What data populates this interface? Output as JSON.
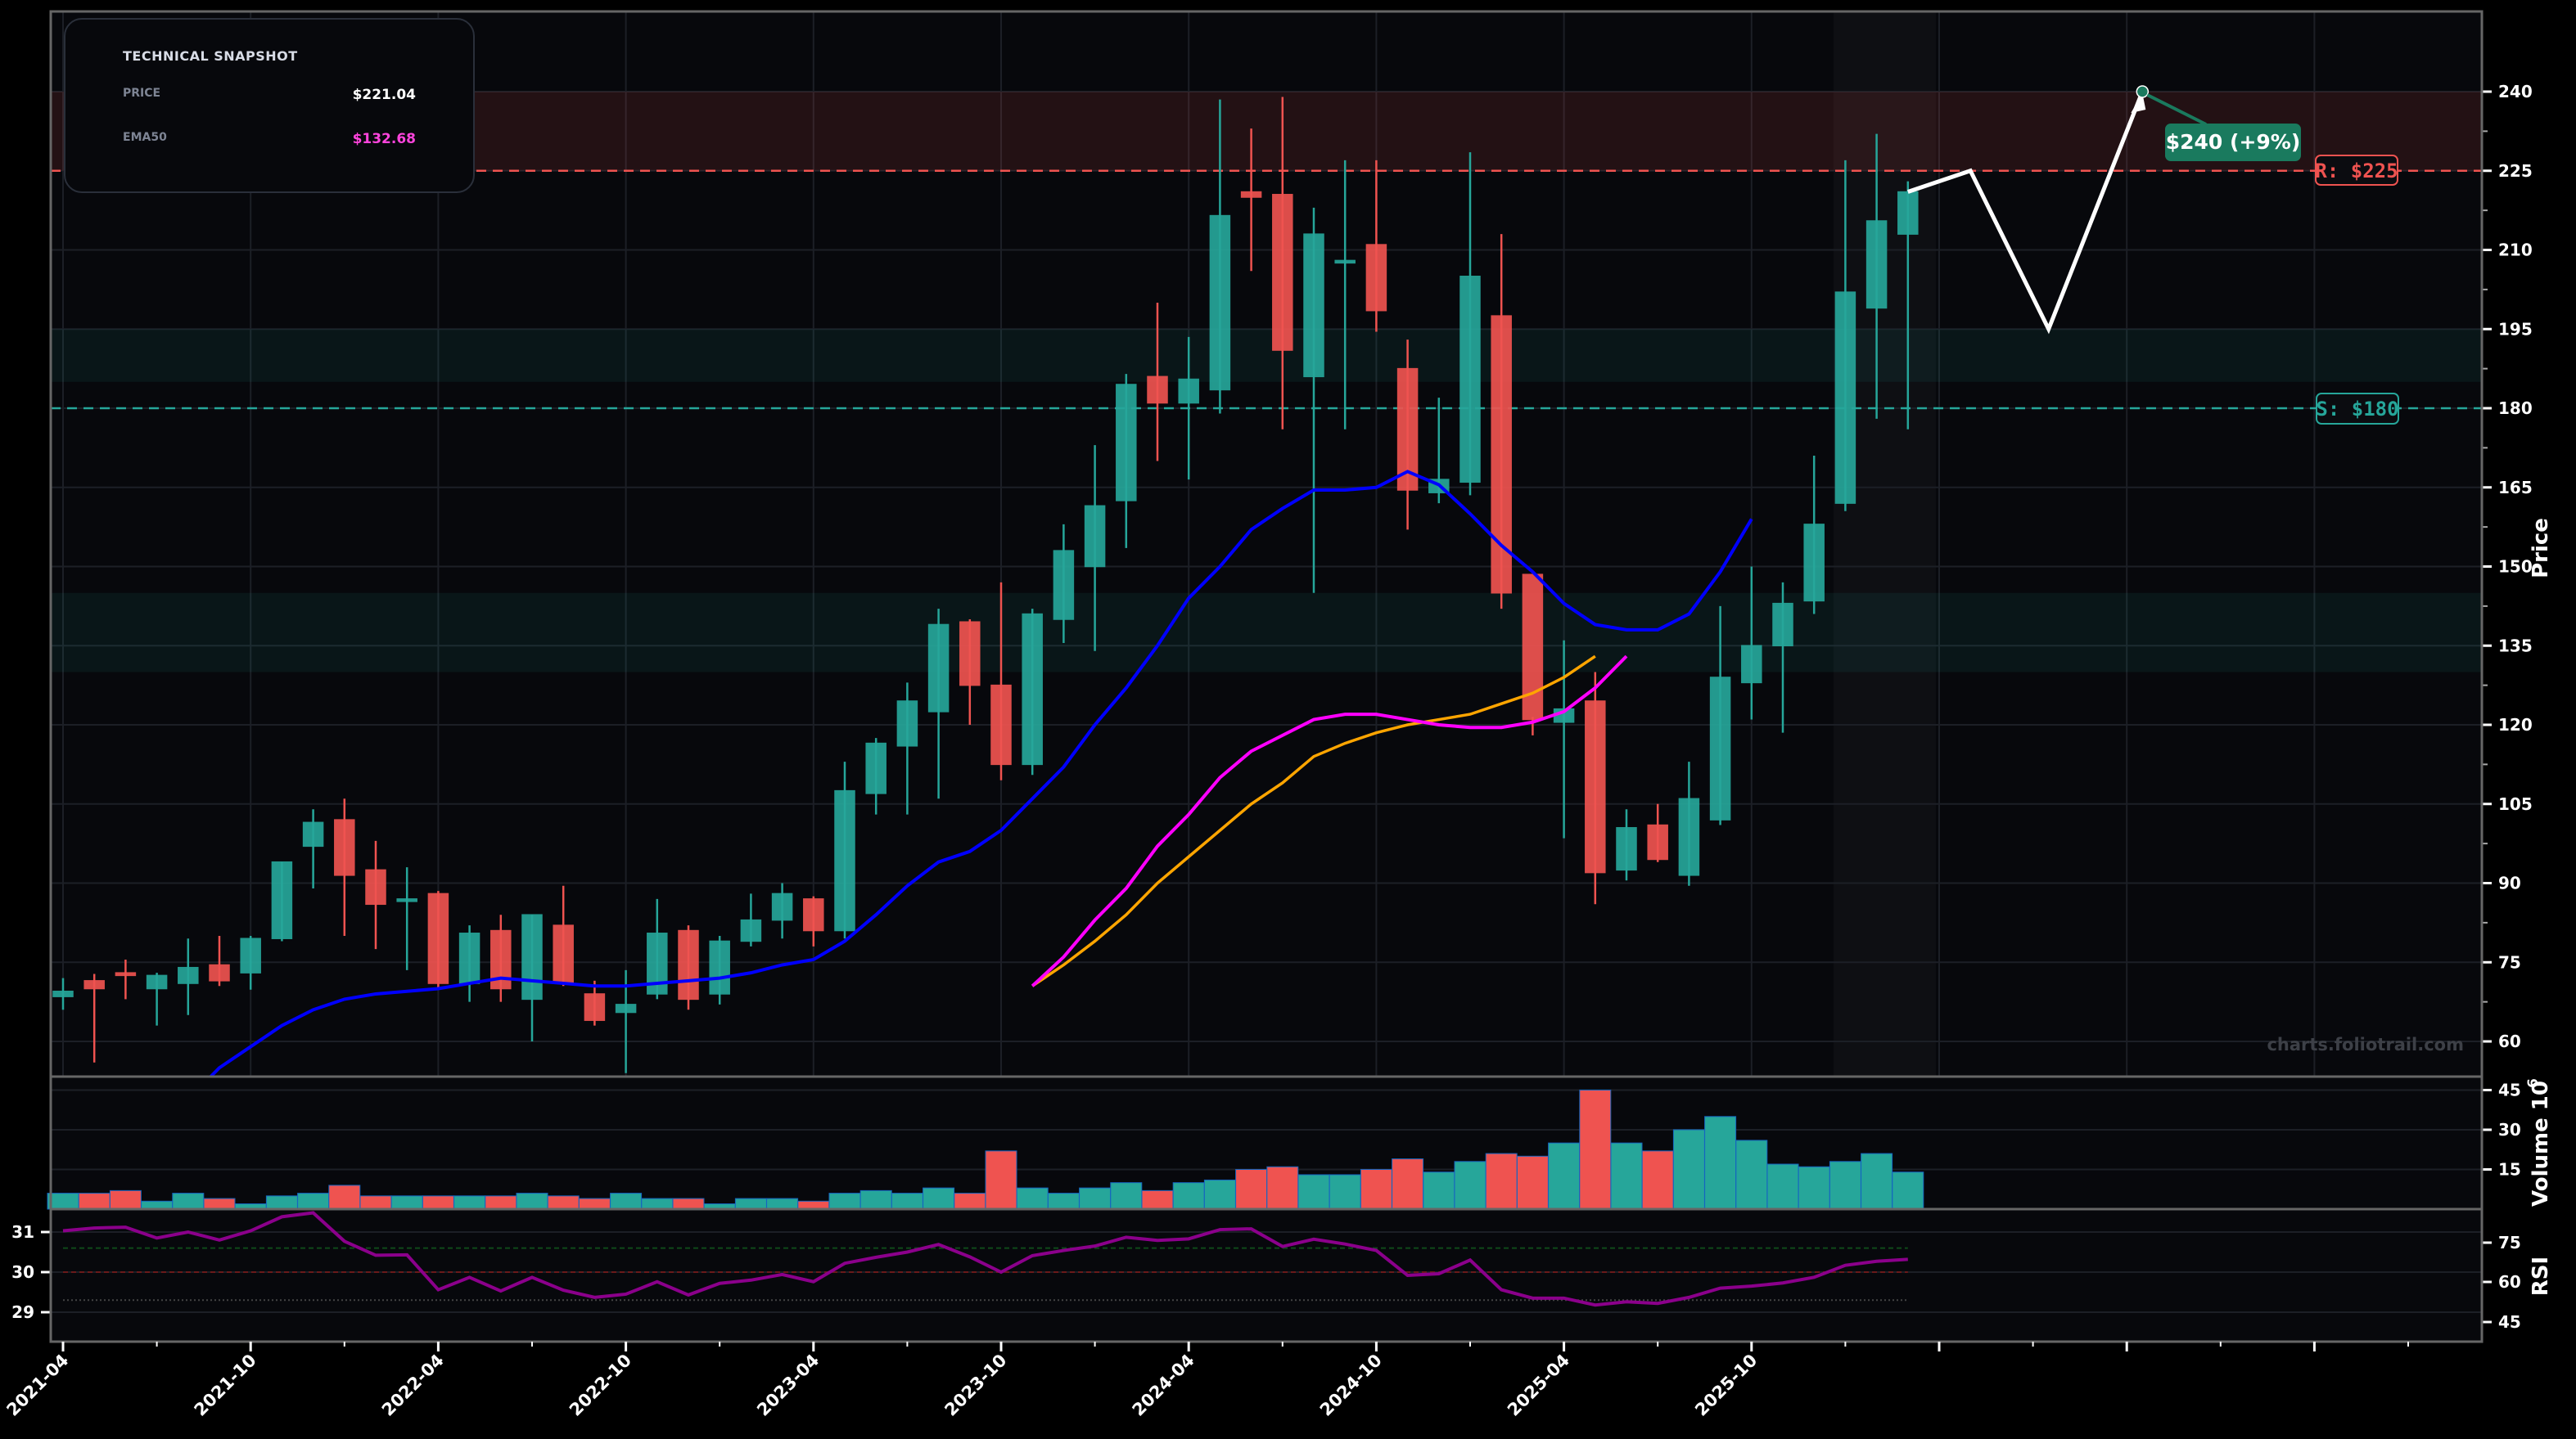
{
  "snapshot": {
    "title": "TECHNICAL SNAPSHOT",
    "price_label": "PRICE",
    "price_value": "$221.04",
    "ema_label": "EMA50",
    "ema_value": "$132.68"
  },
  "watermark": "charts.foliotrail.com",
  "annotations": {
    "resistance_label": "R: $225",
    "support_label": "S: $180",
    "target_label": "$240 (+9%)"
  },
  "colors": {
    "up": "#26a69a",
    "down": "#ef5350",
    "ema_blue": "#0000ff",
    "ema_magenta": "#ff00ff",
    "ema_orange": "#ffa500",
    "rsi": "#8b008b",
    "resistance": "#ef5350",
    "support": "#26a69a",
    "target_box": "#1a7a5e",
    "background": "#07080c"
  },
  "chart_data": [
    {
      "type": "candlestick",
      "title": "",
      "ylabel": "Price",
      "ylim": [
        50,
        245
      ],
      "yticks": [
        60,
        75,
        90,
        105,
        120,
        135,
        150,
        165,
        180,
        195,
        210,
        225,
        240
      ],
      "xtick_labels": [
        "2021-04",
        "2021-10",
        "2022-04",
        "2022-10",
        "2023-04",
        "2023-10",
        "2024-04",
        "2024-10",
        "2025-04",
        "2025-10"
      ],
      "grid": true,
      "dates_start": "2021-04",
      "interval": "monthly",
      "ohlc": [
        [
          68.5,
          69.5,
          66,
          72
        ],
        [
          71.5,
          70,
          56,
          72.8
        ],
        [
          73,
          72.5,
          68,
          75.5
        ],
        [
          70,
          72.5,
          63,
          73
        ],
        [
          71,
          74,
          65,
          79.5
        ],
        [
          74.5,
          71.5,
          70.5,
          80
        ],
        [
          73,
          79.5,
          69.8,
          80
        ],
        [
          79.5,
          94,
          79,
          94
        ],
        [
          97,
          101.5,
          89,
          104
        ],
        [
          102,
          91.5,
          80,
          106
        ],
        [
          92.5,
          86,
          77.5,
          98
        ],
        [
          87,
          87,
          73.5,
          93
        ],
        [
          88,
          71,
          70,
          88.5
        ],
        [
          71,
          80.5,
          67.5,
          82
        ],
        [
          81,
          70,
          67.5,
          84
        ],
        [
          68,
          84,
          60,
          84
        ],
        [
          82,
          71,
          70.5,
          89.5
        ],
        [
          69,
          64,
          63,
          71.5
        ],
        [
          65.5,
          67,
          54,
          73.5
        ],
        [
          69,
          80.5,
          68,
          87
        ],
        [
          81,
          68,
          66,
          82
        ],
        [
          69,
          79,
          67,
          80
        ],
        [
          79,
          83,
          78,
          88
        ],
        [
          83,
          88,
          79.5,
          90
        ],
        [
          87,
          81,
          78,
          87.5
        ],
        [
          81,
          107.5,
          79.5,
          113
        ],
        [
          107,
          116.5,
          103,
          117.5
        ],
        [
          116,
          124.5,
          103,
          128
        ],
        [
          122.5,
          139,
          106,
          142
        ],
        [
          139.5,
          127.5,
          120,
          140
        ],
        [
          127.5,
          112.5,
          109.5,
          147
        ],
        [
          112.5,
          141,
          110.5,
          142
        ],
        [
          140,
          153,
          135.5,
          158
        ],
        [
          150,
          161.5,
          134,
          173
        ],
        [
          162.5,
          184.5,
          153.5,
          186.5
        ],
        [
          186,
          181,
          170,
          200
        ],
        [
          181,
          185.5,
          166.5,
          193.5
        ],
        [
          183.5,
          216.5,
          179,
          238.5
        ],
        [
          221,
          220,
          206,
          233
        ],
        [
          220.5,
          191,
          176,
          239
        ],
        [
          186,
          213,
          145,
          218
        ],
        [
          208,
          208,
          176,
          227
        ],
        [
          211,
          198.5,
          194.5,
          227
        ],
        [
          187.5,
          164.5,
          157,
          193
        ],
        [
          164,
          166.5,
          162,
          182
        ],
        [
          166,
          205,
          163.5,
          228.5
        ],
        [
          197.5,
          145,
          142,
          213
        ],
        [
          148.5,
          121,
          118,
          121.5
        ],
        [
          120.5,
          123,
          98.5,
          136
        ],
        [
          124.5,
          92,
          86,
          130
        ],
        [
          92.5,
          100.5,
          90.5,
          104
        ],
        [
          101,
          94.5,
          94,
          105
        ],
        [
          91.5,
          106,
          89.5,
          113
        ],
        [
          102,
          129,
          101,
          142.5
        ],
        [
          128,
          135,
          121,
          150
        ],
        [
          135,
          143,
          118.5,
          147
        ],
        [
          143.5,
          158,
          141,
          171
        ],
        [
          162,
          202,
          160.5,
          227
        ],
        [
          199,
          215.5,
          178,
          232
        ],
        [
          213,
          221,
          176,
          223
        ]
      ],
      "volume_millions": [
        6,
        6,
        7,
        3,
        6,
        4,
        2,
        5,
        6,
        9,
        5,
        5,
        5,
        5,
        5,
        6,
        5,
        4,
        6,
        4,
        4,
        2,
        4,
        4,
        3,
        6,
        7,
        6,
        8,
        6,
        22,
        8,
        6,
        8,
        10,
        7,
        10,
        11,
        15,
        16,
        13,
        13,
        15,
        19,
        14,
        18,
        21,
        20,
        25,
        45,
        25,
        22,
        30,
        35,
        26,
        17,
        16,
        18,
        21,
        14
      ],
      "volume_ylabel": "Volume  10^6",
      "volume_yticks": [
        15,
        30,
        45
      ],
      "ema_blue": {
        "start_index": 2,
        "values": [
          41,
          45,
          49,
          55,
          59,
          63,
          66,
          68,
          69,
          69.5,
          70,
          71,
          72,
          71.5,
          71,
          70.5,
          70.5,
          71,
          71.5,
          72,
          73,
          74.5,
          75.5,
          79,
          84,
          89.5,
          94,
          96,
          100,
          106,
          112,
          120,
          127,
          135,
          144,
          150,
          157,
          161,
          164.5,
          164.5,
          165,
          168,
          165.5,
          160,
          154,
          149,
          143,
          139,
          138,
          138,
          141,
          149,
          159
        ]
      },
      "ema_magenta": {
        "start_index": 31,
        "values": [
          70.5,
          76,
          83,
          89,
          97,
          103,
          110,
          115,
          118,
          121,
          122,
          122,
          121,
          120,
          119.5,
          119.5,
          120.5,
          122.5,
          127,
          133
        ]
      },
      "ema_orange": {
        "start_index": 31,
        "values": [
          70.5,
          74.5,
          79,
          84,
          90,
          95,
          100,
          105,
          109,
          114,
          116.5,
          118.5,
          120,
          121,
          122,
          124,
          126,
          129,
          133
        ]
      },
      "support_level": 180,
      "resistance_level": 225,
      "resistance_zone": [
        225,
        240
      ],
      "support_zones": [
        [
          185,
          195
        ],
        [
          130,
          145
        ]
      ],
      "projection_path": [
        [
          59,
          221
        ],
        [
          61,
          225
        ],
        [
          63.5,
          195
        ],
        [
          66.5,
          240
        ]
      ],
      "target": 240
    },
    {
      "type": "line",
      "title": "",
      "ylabel": "RSI",
      "left_ylim": [
        28.5,
        31.7
      ],
      "left_yticks": [
        29,
        30,
        31
      ],
      "right_yticks": [
        45,
        60,
        75
      ],
      "reference_lines": {
        "overbought_green": 30.6,
        "midline_red": 30.0,
        "oversold_gray": 29.3
      },
      "values": [
        31.03,
        31.1,
        31.12,
        30.85,
        31.0,
        30.8,
        31.03,
        31.38,
        31.48,
        30.77,
        30.42,
        30.43,
        29.56,
        29.87,
        29.53,
        29.87,
        29.55,
        29.37,
        29.45,
        29.76,
        29.43,
        29.72,
        29.8,
        29.94,
        29.76,
        30.22,
        30.37,
        30.5,
        30.69,
        30.38,
        30.0,
        30.41,
        30.54,
        30.65,
        30.87,
        30.79,
        30.83,
        31.06,
        31.08,
        30.64,
        30.82,
        30.7,
        30.54,
        29.92,
        29.96,
        30.3,
        29.56,
        29.35,
        29.35,
        29.18,
        29.26,
        29.22,
        29.37,
        29.6,
        29.65,
        29.73,
        29.87,
        30.17,
        30.27,
        30.32
      ]
    }
  ]
}
